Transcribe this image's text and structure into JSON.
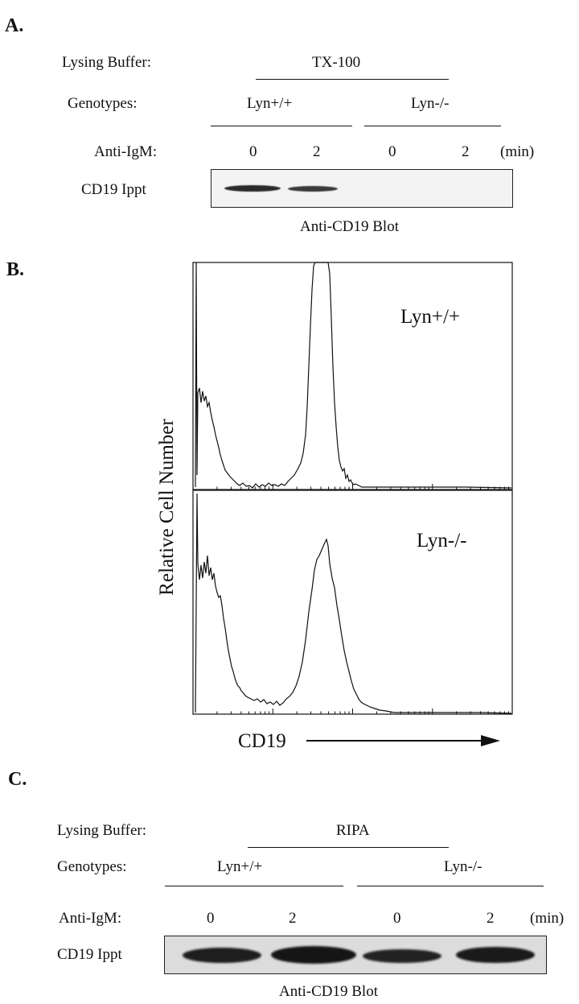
{
  "panelA": {
    "label": "A.",
    "lysing_label": "Lysing Buffer:",
    "lysing_value": "TX-100",
    "genotypes_label": "Genotypes:",
    "genotype_wt": "Lyn+/+",
    "genotype_ko": "Lyn-/-",
    "anti_igm_label": "Anti-IgM:",
    "times": [
      "0",
      "2",
      "0",
      "2"
    ],
    "unit": "(min)",
    "ippt_label": "CD19 Ippt",
    "blot_label": "Anti-CD19 Blot"
  },
  "panelB": {
    "label": "B.",
    "ylabel": "Relative Cell Number",
    "xlabel": "CD19",
    "top_label": "Lyn+/+",
    "bottom_label": "Lyn-/-"
  },
  "panelC": {
    "label": "C.",
    "lysing_label": "Lysing Buffer:",
    "lysing_value": "RIPA",
    "genotypes_label": "Genotypes:",
    "genotype_wt": "Lyn+/+",
    "genotype_ko": "Lyn-/-",
    "anti_igm_label": "Anti-IgM:",
    "times": [
      "0",
      "2",
      "0",
      "2"
    ],
    "unit": "(min)",
    "ippt_label": "CD19 Ippt",
    "blot_label": "Anti-CD19 Blot"
  },
  "colors": {
    "ink": "#111111",
    "band": "#2a2a2a",
    "gel_bg_a": "#f3f3f3",
    "gel_bg_c": "#dcdcdc"
  }
}
